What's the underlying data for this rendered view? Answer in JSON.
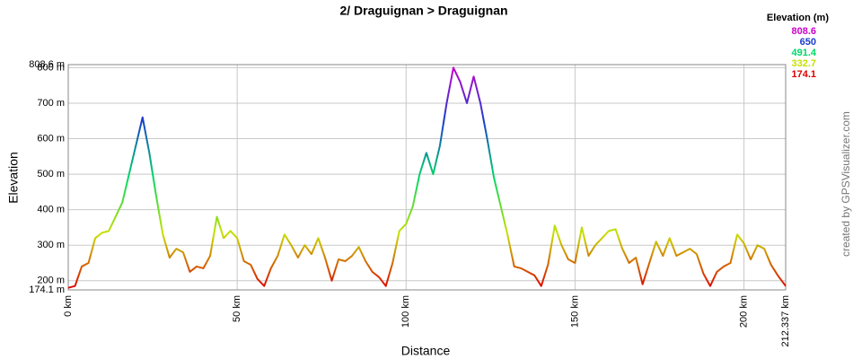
{
  "chart_data": {
    "type": "line",
    "title": "2/ Draguignan > Draguignan",
    "x_label": "Distance",
    "y_label": "Elevation",
    "watermark": "created by GPSVisualizer.com",
    "legend_title": "Elevation (m)",
    "color_scale": [
      {
        "value": 808.6,
        "color": "#cc00cc"
      },
      {
        "value": 650.0,
        "color": "#1a3ccc"
      },
      {
        "value": 491.4,
        "color": "#00d868"
      },
      {
        "value": 332.7,
        "color": "#c8e000"
      },
      {
        "value": 174.1,
        "color": "#dd0000"
      }
    ],
    "x": [
      0,
      2,
      4,
      6,
      8,
      10,
      12,
      14,
      16,
      18,
      20,
      22,
      24,
      26,
      28,
      30,
      32,
      34,
      36,
      38,
      40,
      42,
      44,
      46,
      48,
      50,
      52,
      54,
      56,
      58,
      60,
      62,
      64,
      66,
      68,
      70,
      72,
      74,
      76,
      78,
      80,
      82,
      84,
      86,
      88,
      90,
      92,
      94,
      96,
      98,
      100,
      102,
      104,
      106,
      108,
      110,
      112,
      114,
      116,
      118,
      120,
      122,
      124,
      126,
      128,
      130,
      132,
      134,
      136,
      138,
      140,
      142,
      144,
      146,
      148,
      150,
      152,
      154,
      156,
      158,
      160,
      162,
      164,
      166,
      168,
      170,
      172,
      174,
      176,
      178,
      180,
      182,
      184,
      186,
      188,
      190,
      192,
      194,
      196,
      198,
      200,
      202,
      204,
      206,
      208,
      210,
      212.337
    ],
    "values": [
      180,
      185,
      240,
      250,
      320,
      335,
      340,
      380,
      420,
      500,
      580,
      660,
      560,
      440,
      330,
      265,
      290,
      280,
      225,
      240,
      235,
      270,
      380,
      320,
      340,
      320,
      255,
      245,
      205,
      185,
      235,
      270,
      330,
      300,
      265,
      300,
      275,
      320,
      265,
      200,
      260,
      255,
      270,
      295,
      255,
      225,
      210,
      185,
      250,
      340,
      360,
      410,
      500,
      560,
      500,
      580,
      700,
      800,
      760,
      700,
      775,
      700,
      600,
      490,
      410,
      330,
      240,
      235,
      225,
      215,
      185,
      245,
      355,
      300,
      260,
      250,
      350,
      270,
      300,
      320,
      340,
      345,
      290,
      250,
      265,
      190,
      250,
      310,
      270,
      320,
      270,
      280,
      290,
      275,
      220,
      185,
      225,
      240,
      250,
      330,
      305,
      260,
      300,
      290,
      245,
      215,
      185
    ],
    "xlim": [
      0,
      212.337
    ],
    "ylim": [
      174.1,
      808.6
    ],
    "xticks": [
      {
        "value": 0,
        "label": "0 km"
      },
      {
        "value": 50,
        "label": "50 km"
      },
      {
        "value": 100,
        "label": "100 km"
      },
      {
        "value": 150,
        "label": "150 km"
      },
      {
        "value": 200,
        "label": "200 km"
      },
      {
        "value": 212.337,
        "label": "212.337 km"
      }
    ],
    "yticks": [
      {
        "value": 174.1,
        "label": "174.1 m"
      },
      {
        "value": 200,
        "label": "200 m"
      },
      {
        "value": 300,
        "label": "300 m"
      },
      {
        "value": 400,
        "label": "400 m"
      },
      {
        "value": 500,
        "label": "500 m"
      },
      {
        "value": 600,
        "label": "600 m"
      },
      {
        "value": 700,
        "label": "700 m"
      },
      {
        "value": 800,
        "label": "800 m"
      },
      {
        "value": 808.6,
        "label": "808.6 m"
      }
    ],
    "grid": true
  }
}
